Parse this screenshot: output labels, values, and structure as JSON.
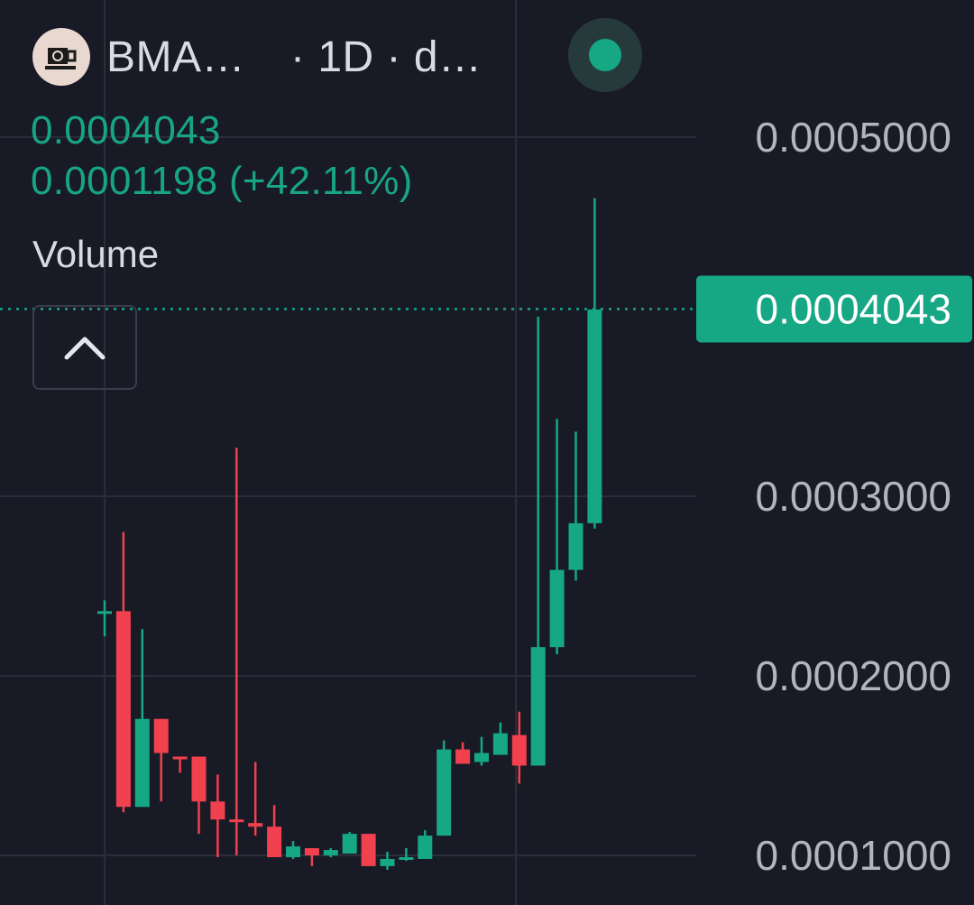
{
  "header": {
    "symbol": "BMA…",
    "meta": "· 1D · d…",
    "live_indicator": "live-dot-icon",
    "avatar_icon": "coffee-cup-avatar-icon"
  },
  "legend": {
    "close": "0.0004043",
    "change": "0.0001198 (+42.11%)",
    "volume_label": "Volume",
    "collapse_icon": "chevron-up-icon"
  },
  "colors": {
    "background": "#181b26",
    "up": "#16a785",
    "down": "#f1404e",
    "grid": "#2b2e3a",
    "axis_text": "#b2b5be",
    "price_tag": "#16a785"
  },
  "chart_data": {
    "type": "candlestick",
    "interval": "1D",
    "y_axis": {
      "ticks": [
        0.0001,
        0.0002,
        0.0003,
        0.0005
      ],
      "tick_labels": [
        "0.0001000",
        "0.0002000",
        "0.0003000",
        "0.0005000"
      ],
      "range": [
        9e-05,
        0.00052
      ]
    },
    "last_price": 0.0004043,
    "last_price_label": "0.0004043",
    "grid": true,
    "candles": [
      {
        "o": 0.000236,
        "h": 0.000242,
        "l": 0.000222,
        "c": 0.000236
      },
      {
        "o": 0.000236,
        "h": 0.00028,
        "l": 0.000124,
        "c": 0.000127
      },
      {
        "o": 0.000127,
        "h": 0.000226,
        "l": 0.000127,
        "c": 0.000176
      },
      {
        "o": 0.000176,
        "h": 0.000176,
        "l": 0.00013,
        "c": 0.000157
      },
      {
        "o": 0.000155,
        "h": 0.000155,
        "l": 0.000146,
        "c": 0.000154
      },
      {
        "o": 0.000155,
        "h": 0.000155,
        "l": 0.000112,
        "c": 0.00013
      },
      {
        "o": 0.00013,
        "h": 0.000145,
        "l": 9.9e-05,
        "c": 0.00012
      },
      {
        "o": 0.00012,
        "h": 0.000327,
        "l": 0.0001,
        "c": 0.000119
      },
      {
        "o": 0.000118,
        "h": 0.000152,
        "l": 0.000111,
        "c": 0.000116
      },
      {
        "o": 0.000116,
        "h": 0.000128,
        "l": 9.9e-05,
        "c": 9.9e-05
      },
      {
        "o": 9.9e-05,
        "h": 0.000108,
        "l": 9.8e-05,
        "c": 0.000105
      },
      {
        "o": 0.000104,
        "h": 0.000104,
        "l": 9.4e-05,
        "c": 0.0001
      },
      {
        "o": 0.0001,
        "h": 0.000104,
        "l": 9.9e-05,
        "c": 0.000103
      },
      {
        "o": 0.000101,
        "h": 0.000113,
        "l": 0.000101,
        "c": 0.000112
      },
      {
        "o": 0.000112,
        "h": 0.000112,
        "l": 9.4e-05,
        "c": 9.4e-05
      },
      {
        "o": 9.4e-05,
        "h": 0.000102,
        "l": 9.2e-05,
        "c": 9.8e-05
      },
      {
        "o": 9.9e-05,
        "h": 0.000104,
        "l": 9.7e-05,
        "c": 9.9e-05
      },
      {
        "o": 9.8e-05,
        "h": 0.000114,
        "l": 9.8e-05,
        "c": 0.000111
      },
      {
        "o": 0.000111,
        "h": 0.000164,
        "l": 0.000111,
        "c": 0.000159
      },
      {
        "o": 0.000159,
        "h": 0.000163,
        "l": 0.000151,
        "c": 0.000151
      },
      {
        "o": 0.000152,
        "h": 0.000166,
        "l": 0.00015,
        "c": 0.000157
      },
      {
        "o": 0.000156,
        "h": 0.000174,
        "l": 0.000156,
        "c": 0.000168
      },
      {
        "o": 0.000167,
        "h": 0.00018,
        "l": 0.00014,
        "c": 0.00015
      },
      {
        "o": 0.00015,
        "h": 0.0004,
        "l": 0.00015,
        "c": 0.000216
      },
      {
        "o": 0.000216,
        "h": 0.000343,
        "l": 0.000212,
        "c": 0.000259
      },
      {
        "o": 0.000259,
        "h": 0.000336,
        "l": 0.000253,
        "c": 0.000285
      },
      {
        "o": 0.000285,
        "h": 0.000466,
        "l": 0.000282,
        "c": 0.000404
      }
    ]
  }
}
